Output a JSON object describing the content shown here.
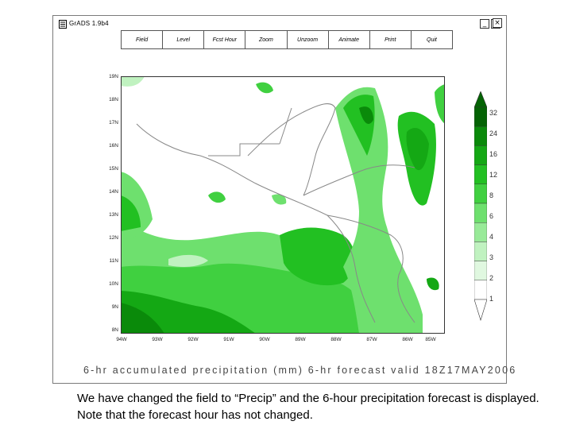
{
  "window": {
    "title": "GrADS 1.9b4",
    "buttons": {
      "minimize": "_",
      "maximize": "□",
      "close": "×"
    }
  },
  "menu": [
    {
      "id": "field",
      "label": "Field"
    },
    {
      "id": "level",
      "label": "Level"
    },
    {
      "id": "fcst-hour",
      "label": "Fcst Hour"
    },
    {
      "id": "zoom",
      "label": "Zoom"
    },
    {
      "id": "unzoom",
      "label": "Unzoom"
    },
    {
      "id": "animate",
      "label": "Animate"
    },
    {
      "id": "print",
      "label": "Print"
    },
    {
      "id": "quit",
      "label": "Quit"
    }
  ],
  "map": {
    "y_tick_labels": [
      "19N",
      "18N",
      "17N",
      "16N",
      "15N",
      "14N",
      "13N",
      "12N",
      "11N",
      "10N",
      "9N",
      "8N"
    ],
    "x_tick_labels": [
      "94W",
      "93W",
      "92W",
      "91W",
      "90W",
      "89W",
      "88W",
      "87W",
      "86W",
      "85W"
    ],
    "colorbar_labels": [
      "32",
      "24",
      "16",
      "12",
      "8",
      "6",
      "4",
      "3",
      "2",
      "1"
    ],
    "colors": [
      "#046304",
      "#0a8a0a",
      "#14a814",
      "#22c022",
      "#40d040",
      "#6ee06e",
      "#98ea98",
      "#c0f2c0",
      "#e0f8e0",
      "#ffffff"
    ],
    "plot_title": "6-hr accumulated precipitation (mm) 6-hr forecast valid 18Z17MAY2006"
  },
  "caption": "We have changed the field to “Precip” and the 6-hour precipitation forecast is displayed. Note that the forecast hour has not changed."
}
